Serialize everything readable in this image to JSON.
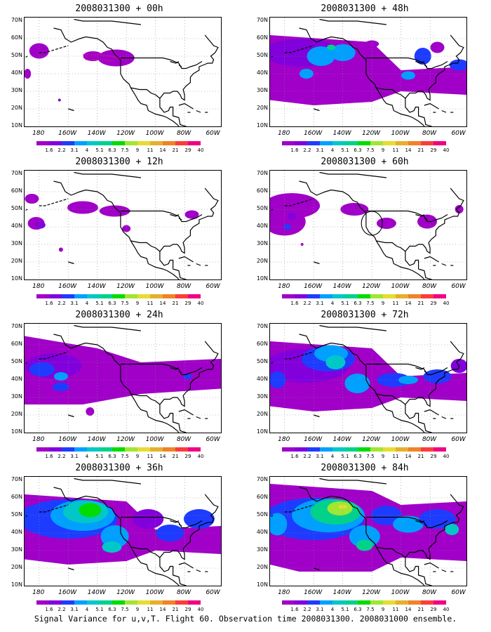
{
  "panels": [
    {
      "title": "2008031300 + 00h",
      "level": 0
    },
    {
      "title": "2008031300 + 48h",
      "level": 3
    },
    {
      "title": "2008031300 + 12h",
      "level": 1
    },
    {
      "title": "2008031300 + 60h",
      "level": 4
    },
    {
      "title": "2008031300 + 24h",
      "level": 1
    },
    {
      "title": "2008031300 + 72h",
      "level": 5
    },
    {
      "title": "2008031300 + 36h",
      "level": 2
    },
    {
      "title": "2008031300 + 84h",
      "level": 6
    }
  ],
  "lat_labels": [
    "70N",
    "60N",
    "50N",
    "40N",
    "30N",
    "20N",
    "10N"
  ],
  "lon_labels": [
    "180",
    "160W",
    "140W",
    "120W",
    "100W",
    "80W",
    "60W"
  ],
  "colorbar": {
    "colors": [
      "#a000c8",
      "#8200dc",
      "#1e3cff",
      "#00a0ff",
      "#00c8c8",
      "#00d28c",
      "#00dc00",
      "#a0e632",
      "#e6dc32",
      "#e6af2d",
      "#f08228",
      "#fa3c3c",
      "#f00082"
    ],
    "labels": [
      "1.6",
      "2.2",
      "3.1",
      "4",
      "5.1",
      "6.3",
      "7.5",
      "9",
      "11",
      "14",
      "21",
      "29",
      "40"
    ]
  },
  "footer": "Signal Variance for u,v,T. Flight 60. Observation time 2008031300. 2008031000 ensemble."
}
